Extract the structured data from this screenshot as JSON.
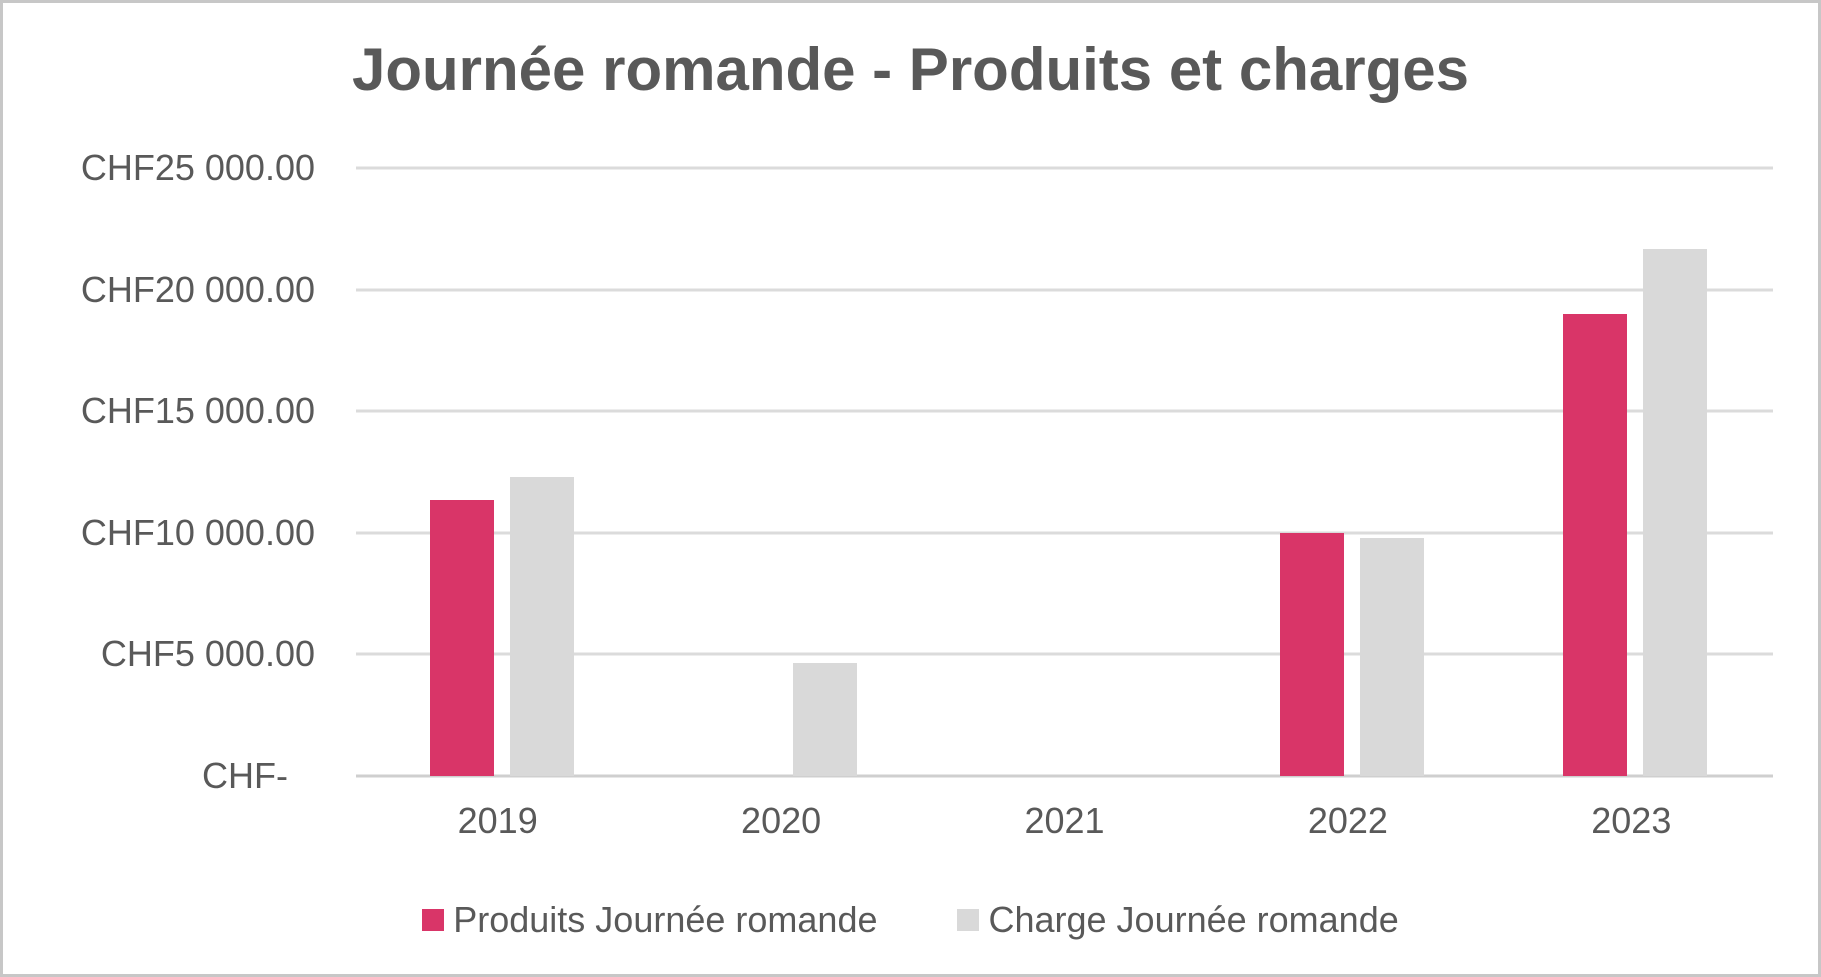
{
  "title": "Journée romande - Produits et charges",
  "colors": {
    "title_text": "#595959",
    "axis_text": "#595959",
    "gridline": "#dbdbdb",
    "axis_line": "#cfcfcf",
    "produits": "#d93568",
    "charge": "#d9d9d9",
    "frame_border": "#c7c7c7",
    "background": "#ffffff"
  },
  "chart_data": {
    "type": "bar",
    "title": "Journée romande - Produits et charges",
    "categories": [
      "2019",
      "2020",
      "2021",
      "2022",
      "2023"
    ],
    "series": [
      {
        "name": "Produits Journée romande",
        "color": "#d93568",
        "values": [
          11350,
          0,
          0,
          10000,
          19000
        ]
      },
      {
        "name": "Charge Journée romande",
        "color": "#d9d9d9",
        "values": [
          12300,
          4650,
          0,
          9800,
          21650
        ]
      }
    ],
    "y_axis": {
      "min": 0,
      "max": 25000,
      "tick_step": 5000,
      "ticks": [
        {
          "value": 25000,
          "label": "CHF25 000.00"
        },
        {
          "value": 20000,
          "label": "CHF20 000.00"
        },
        {
          "value": 15000,
          "label": "CHF15 000.00"
        },
        {
          "value": 10000,
          "label": "CHF10 000.00"
        },
        {
          "value": 5000,
          "label": "CHF5 000.00"
        },
        {
          "value": 0,
          "label": "CHF-"
        }
      ]
    },
    "xlabel": "",
    "ylabel": "",
    "grid": true,
    "legend_position": "bottom"
  }
}
